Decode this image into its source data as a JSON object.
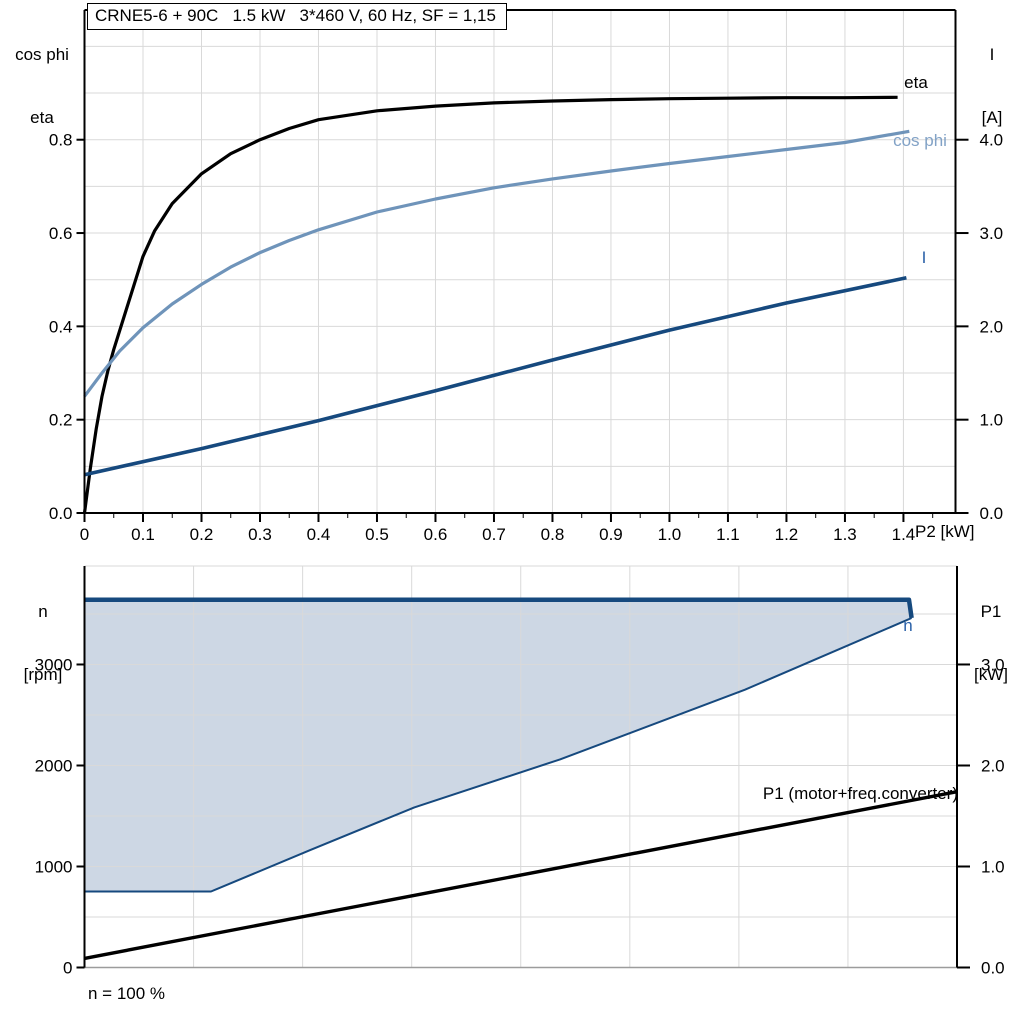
{
  "colors": {
    "black": "#000000",
    "steel_blue": "#6f94ba",
    "steel_blue_light": "#82a2c6",
    "dark_blue": "#16497e",
    "label_blue": "#2b61a8",
    "area_fill": "#cdd7e4",
    "grid": "#d9d9d9",
    "axis_gray": "#9c9c9c"
  },
  "chart_data": [
    {
      "id": "top",
      "type": "line",
      "title": "CRNE5-6 + 90C   1.5 kW   3*460 V, 60 Hz, SF = 1,15",
      "xlabel": "P2 [kW]",
      "ylabel_left_1": "cos phi",
      "ylabel_left_2": "eta",
      "ylabel_right_1": "I",
      "ylabel_right_2": "[A]",
      "legend": "none",
      "grid": "on",
      "xlim": [
        0,
        1.489
      ],
      "x_ticks": {
        "values": [
          0,
          0.1,
          0.2,
          0.3,
          0.4,
          0.5,
          0.6,
          0.7,
          0.8,
          0.9,
          1.0,
          1.1,
          1.2,
          1.3,
          1.4
        ],
        "labels": [
          "0",
          "0.1",
          "0.2",
          "0.3",
          "0.4",
          "0.5",
          "0.6",
          "0.7",
          "0.8",
          "0.9",
          "1.0",
          "1.1",
          "1.2",
          "1.3",
          "1.4"
        ]
      },
      "x_minor": [
        0.05,
        0.15,
        0.25,
        0.35,
        0.45,
        0.55,
        0.65,
        0.75,
        0.85,
        0.95,
        1.05,
        1.15,
        1.25,
        1.35,
        1.45
      ],
      "x_grid": [
        0.1,
        0.2,
        0.3,
        0.4,
        0.5,
        0.6,
        0.7,
        0.8,
        0.9,
        1.0,
        1.1,
        1.2,
        1.3,
        1.4
      ],
      "axes": {
        "left": {
          "range": [
            0,
            1.078
          ],
          "ticks": [
            0,
            0.2,
            0.4,
            0.6,
            0.8
          ],
          "labels": [
            "0.0",
            "0.2",
            "0.4",
            "0.6",
            "0.8"
          ],
          "grid": [
            0.1,
            0.2,
            0.3,
            0.4,
            0.5,
            0.6,
            0.7,
            0.8,
            0.9,
            1.0
          ]
        },
        "right": {
          "range": [
            0,
            5.39
          ],
          "ticks": [
            0,
            1,
            2,
            3,
            4
          ],
          "labels": [
            "0.0",
            "1.0",
            "2.0",
            "3.0",
            "4.0"
          ],
          "grid": []
        }
      },
      "series": [
        {
          "name": "eta",
          "axis": "left",
          "color": "#000000",
          "width": 3.2,
          "points": [
            [
              0,
              0
            ],
            [
              0.01,
              0.095
            ],
            [
              0.02,
              0.18
            ],
            [
              0.03,
              0.25
            ],
            [
              0.04,
              0.305
            ],
            [
              0.05,
              0.35
            ],
            [
              0.07,
              0.43
            ],
            [
              0.1,
              0.55
            ],
            [
              0.12,
              0.605
            ],
            [
              0.15,
              0.663
            ],
            [
              0.2,
              0.727
            ],
            [
              0.25,
              0.77
            ],
            [
              0.3,
              0.8
            ],
            [
              0.35,
              0.824
            ],
            [
              0.4,
              0.843
            ],
            [
              0.5,
              0.862
            ],
            [
              0.6,
              0.872
            ],
            [
              0.7,
              0.879
            ],
            [
              0.8,
              0.883
            ],
            [
              0.9,
              0.886
            ],
            [
              1.0,
              0.888
            ],
            [
              1.1,
              0.889
            ],
            [
              1.2,
              0.89
            ],
            [
              1.3,
              0.89
            ],
            [
              1.39,
              0.891
            ]
          ]
        },
        {
          "name": "cos phi",
          "axis": "left",
          "color": "#6f94ba",
          "width": 3.2,
          "points": [
            [
              0,
              0.25
            ],
            [
              0.03,
              0.3
            ],
            [
              0.06,
              0.347
            ],
            [
              0.1,
              0.397
            ],
            [
              0.15,
              0.448
            ],
            [
              0.2,
              0.49
            ],
            [
              0.25,
              0.527
            ],
            [
              0.3,
              0.558
            ],
            [
              0.35,
              0.584
            ],
            [
              0.4,
              0.607
            ],
            [
              0.5,
              0.645
            ],
            [
              0.6,
              0.673
            ],
            [
              0.7,
              0.697
            ],
            [
              0.8,
              0.716
            ],
            [
              0.9,
              0.733
            ],
            [
              1.0,
              0.749
            ],
            [
              1.1,
              0.764
            ],
            [
              1.2,
              0.779
            ],
            [
              1.3,
              0.794
            ],
            [
              1.41,
              0.818
            ]
          ]
        },
        {
          "name": "I",
          "axis": "right",
          "color": "#16497e",
          "width": 3.6,
          "points": [
            [
              0,
              0.41
            ],
            [
              0.2,
              0.69
            ],
            [
              0.4,
              0.99
            ],
            [
              0.6,
              1.31
            ],
            [
              0.8,
              1.64
            ],
            [
              1.0,
              1.96
            ],
            [
              1.2,
              2.25
            ],
            [
              1.405,
              2.52
            ]
          ]
        }
      ]
    },
    {
      "id": "bottom",
      "type": "line",
      "title": "",
      "xlabel": "",
      "footnote": "n = 100 %",
      "ylabel_left_1": "n",
      "ylabel_left_2": "[rpm]",
      "ylabel_right_1": "P1",
      "ylabel_right_2": "[kW]",
      "legend": "none",
      "grid": "on",
      "xlim": [
        0,
        1
      ],
      "x_ticks": {
        "values": [],
        "labels": []
      },
      "x_minor": [],
      "x_grid": [
        0.125,
        0.25,
        0.375,
        0.5,
        0.625,
        0.75,
        0.875
      ],
      "axes": {
        "left": {
          "range": [
            0,
            3975
          ],
          "ticks": [
            0,
            1000,
            2000,
            3000
          ],
          "labels": [
            "0",
            "1000",
            "2000",
            "3000"
          ],
          "grid": [
            500,
            1000,
            1500,
            2000,
            2500,
            3000,
            3500
          ]
        },
        "right": {
          "range": [
            0,
            3.975
          ],
          "ticks": [
            0,
            1,
            2,
            3
          ],
          "labels": [
            "0.0",
            "1.0",
            "2.0",
            "3.0"
          ],
          "grid": []
        }
      },
      "fill": {
        "upper": "n",
        "lower": "n min",
        "color": "#cdd7e4"
      },
      "series": [
        {
          "name": "n",
          "axis": "left",
          "color": "#16497e",
          "width": 4.5,
          "points": [
            [
              0,
              3640
            ],
            [
              0.945,
              3640
            ],
            [
              0.948,
              3460
            ]
          ]
        },
        {
          "name": "n min",
          "axis": "left",
          "color": "#16497e",
          "width": 2,
          "points": [
            [
              0,
              752
            ],
            [
              0.145,
              752
            ],
            [
              0.258,
              1160
            ],
            [
              0.378,
              1585
            ],
            [
              0.545,
              2060
            ],
            [
              0.757,
              2750
            ],
            [
              0.948,
              3460
            ]
          ]
        },
        {
          "name": "P1 (motor+freq.converter)",
          "axis": "right",
          "color": "#000000",
          "width": 3.4,
          "points": [
            [
              0,
              0.09
            ],
            [
              1.0,
              1.74
            ]
          ]
        }
      ]
    }
  ]
}
